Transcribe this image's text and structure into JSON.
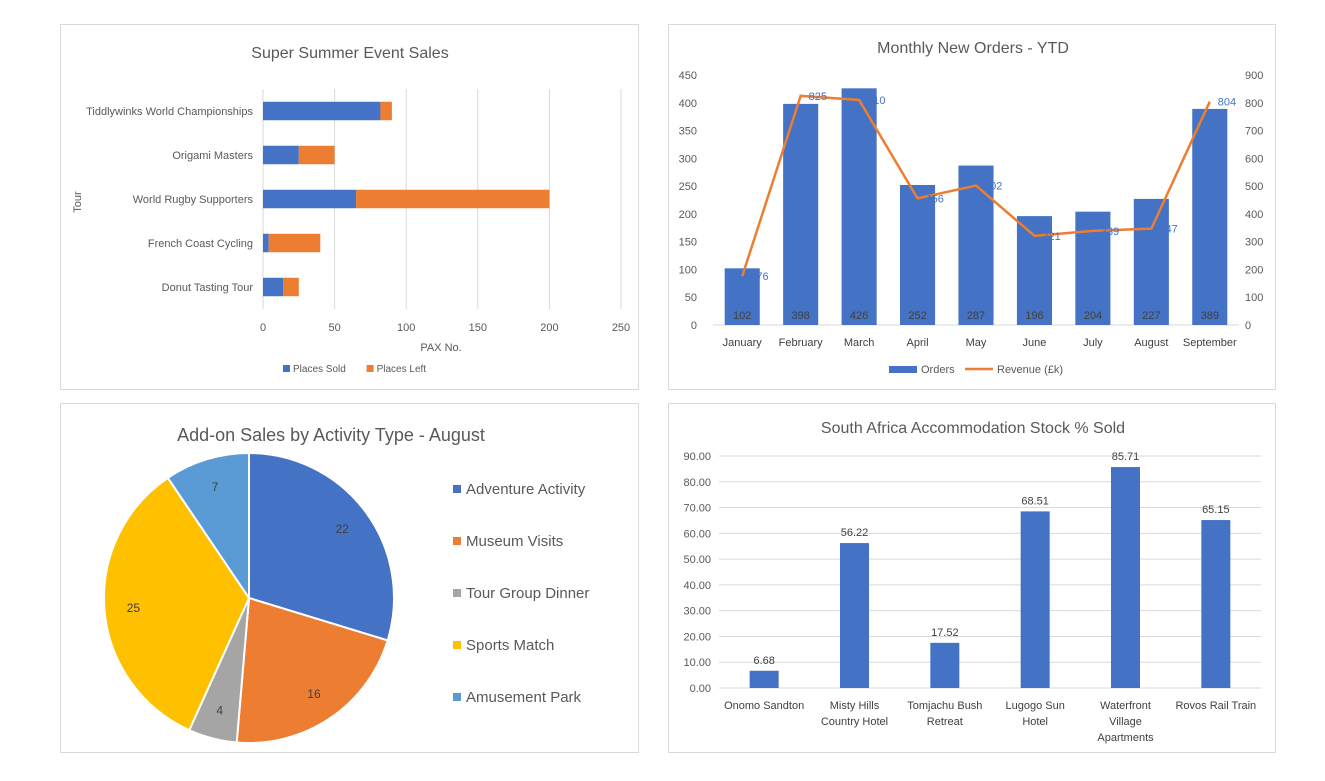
{
  "chart_data": [
    {
      "type": "bar",
      "orientation": "horizontal",
      "stacked": true,
      "title": "Super Summer Event Sales",
      "xlabel": "PAX No.",
      "ylabel": "Tour",
      "categories": [
        "Tiddlywinks World Championships",
        "Origami Masters",
        "World Rugby Supporters",
        "French Coast Cycling",
        "Donut Tasting Tour"
      ],
      "series": [
        {
          "name": "Places Sold",
          "color": "#4472c4",
          "values": [
            82,
            25,
            65,
            4,
            14
          ]
        },
        {
          "name": "Places Left",
          "color": "#ed7d31",
          "values": [
            8,
            25,
            135,
            36,
            11
          ]
        }
      ],
      "xlim": [
        0,
        250
      ],
      "xticks": [
        "0",
        "50",
        "100",
        "150",
        "200",
        "250"
      ],
      "grid": true,
      "legend": "bottom"
    },
    {
      "type": "bar",
      "combo": "bar-line",
      "title": "Monthly New Orders - YTD",
      "categories": [
        "January",
        "February",
        "March",
        "April",
        "May",
        "June",
        "July",
        "August",
        "September"
      ],
      "series": [
        {
          "name": "Orders",
          "kind": "bar",
          "axis": "left",
          "color": "#4472c4",
          "values": [
            102,
            398,
            426,
            252,
            287,
            196,
            204,
            227,
            389
          ],
          "labels": [
            "102",
            "398",
            "426",
            "252",
            "287",
            "196",
            "204",
            "227",
            "389"
          ]
        },
        {
          "name": "Revenue (£k)",
          "kind": "line",
          "axis": "right",
          "color": "#ed7d31",
          "values": [
            176,
            825,
            810,
            456,
            502,
            321,
            339,
            347,
            804
          ],
          "labels": [
            "176",
            "825",
            "810",
            "456",
            "502",
            "321",
            "339",
            "347",
            "804"
          ]
        }
      ],
      "ylim": [
        0,
        450
      ],
      "yticks": [
        "0",
        "50",
        "100",
        "150",
        "200",
        "250",
        "300",
        "350",
        "400",
        "450"
      ],
      "y2lim": [
        0,
        900
      ],
      "y2ticks": [
        "0",
        "100",
        "200",
        "300",
        "400",
        "500",
        "600",
        "700",
        "800",
        "900"
      ],
      "grid": false,
      "legend": "bottom"
    },
    {
      "type": "pie",
      "title": "Add-on Sales by Activity Type - August",
      "slices": [
        {
          "label": "Adventure Activity",
          "value": 22,
          "color": "#4472c4"
        },
        {
          "label": "Museum Visits",
          "value": 16,
          "color": "#ed7d31"
        },
        {
          "label": "Tour Group Dinner",
          "value": 4,
          "color": "#a5a5a5"
        },
        {
          "label": "Sports Match",
          "value": 25,
          "color": "#ffc000"
        },
        {
          "label": "Amusement Park",
          "value": 7,
          "color": "#5b9bd5"
        }
      ],
      "legend": "right"
    },
    {
      "type": "bar",
      "title": "South Africa Accommodation Stock % Sold",
      "categories": [
        [
          "Onomo Sandton"
        ],
        [
          "Misty Hills",
          "Country Hotel"
        ],
        [
          "Tomjachu Bush",
          "Retreat"
        ],
        [
          "Lugogo Sun",
          "Hotel"
        ],
        [
          "Waterfront",
          "Village",
          "Apartments"
        ],
        [
          "Rovos Rail Train"
        ]
      ],
      "values": [
        6.68,
        56.22,
        17.52,
        68.51,
        85.71,
        65.15
      ],
      "labels": [
        "6.68",
        "56.22",
        "17.52",
        "68.51",
        "85.71",
        "65.15"
      ],
      "color": "#4472c4",
      "ylim": [
        0,
        90
      ],
      "yticks": [
        "0.00",
        "10.00",
        "20.00",
        "30.00",
        "40.00",
        "50.00",
        "60.00",
        "70.00",
        "80.00",
        "90.00"
      ],
      "grid": true,
      "legend": "none"
    }
  ]
}
